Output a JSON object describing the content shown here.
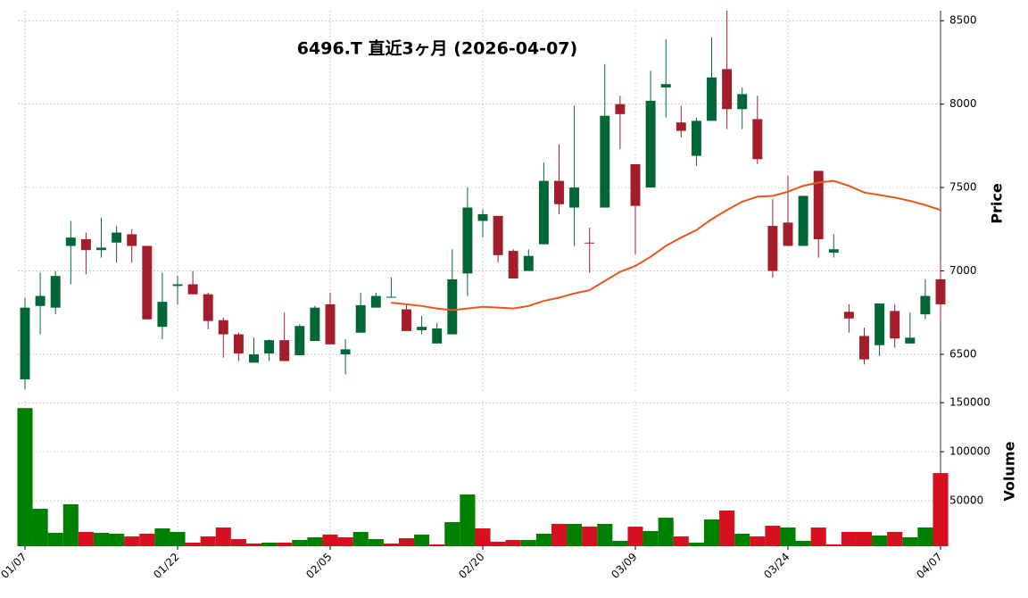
{
  "chart_data": {
    "type": "candlestick",
    "title": "6496.T  直近3ヶ月  (2026-04-07)",
    "ylabel": "Price",
    "y2label": "Volume",
    "x": [
      "01/07",
      null,
      null,
      null,
      null,
      null,
      null,
      null,
      null,
      null,
      "01/22",
      null,
      null,
      null,
      null,
      null,
      null,
      null,
      null,
      null,
      "02/05",
      null,
      null,
      null,
      null,
      null,
      null,
      null,
      null,
      null,
      "02/20",
      null,
      null,
      null,
      null,
      null,
      null,
      null,
      null,
      null,
      "03/09",
      null,
      null,
      null,
      null,
      null,
      null,
      null,
      null,
      null,
      "03/24",
      null,
      null,
      null,
      null,
      null,
      null,
      null,
      null,
      null,
      "04/07"
    ],
    "open": [
      6350,
      6790,
      6780,
      7150,
      7190,
      7125,
      7170,
      7220,
      7150,
      6665,
      6910,
      6920,
      6860,
      6705,
      6620,
      6450,
      6505,
      6585,
      6495,
      6580,
      6800,
      6500,
      6630,
      6780,
      6840,
      6770,
      6645,
      6565,
      6620,
      6985,
      7300,
      7330,
      7120,
      7000,
      7160,
      7540,
      7380,
      7170,
      7380,
      8000,
      7640,
      7500,
      8100,
      7890,
      7690,
      7900,
      8210,
      7970,
      7910,
      7270,
      7290,
      7150,
      7600,
      7110,
      6755,
      6610,
      6555,
      6760,
      6565,
      6740,
      6950
    ],
    "high": [
      6840,
      6990,
      7000,
      7300,
      7230,
      7320,
      7270,
      7250,
      7150,
      6990,
      6970,
      7000,
      6870,
      6720,
      6630,
      6600,
      6590,
      6750,
      6680,
      6790,
      6870,
      6590,
      6870,
      6870,
      6960,
      6800,
      6730,
      6690,
      7130,
      7500,
      7370,
      7330,
      7130,
      7130,
      7650,
      7760,
      7990,
      7260,
      8240,
      8050,
      7640,
      8200,
      8390,
      7990,
      7920,
      8400,
      8560,
      8100,
      8050,
      7430,
      7570,
      7450,
      7600,
      7220,
      6800,
      6660,
      6805,
      6800,
      6750,
      6950,
      7050
    ],
    "low": [
      6290,
      6620,
      6740,
      6920,
      6980,
      7080,
      7050,
      7050,
      6710,
      6590,
      6800,
      6860,
      6650,
      6480,
      6460,
      6450,
      6460,
      6460,
      6495,
      6580,
      6560,
      6380,
      6630,
      6780,
      6840,
      6640,
      6620,
      6565,
      6620,
      6850,
      7200,
      7050,
      6955,
      7000,
      7160,
      7340,
      7150,
      6990,
      7380,
      7730,
      7100,
      7500,
      7920,
      7800,
      7630,
      7900,
      7850,
      7850,
      7640,
      6960,
      7150,
      7150,
      7080,
      7080,
      6630,
      6440,
      6490,
      6540,
      6565,
      6710,
      6700
    ],
    "close": [
      6780,
      6850,
      6970,
      7200,
      7125,
      7140,
      7230,
      7150,
      6710,
      6815,
      6920,
      6860,
      6700,
      6620,
      6505,
      6500,
      6585,
      6460,
      6670,
      6780,
      6560,
      6530,
      6795,
      6850,
      6845,
      6640,
      6665,
      6655,
      6950,
      7380,
      7340,
      7095,
      6955,
      7090,
      7540,
      7400,
      7500,
      7165,
      7930,
      7940,
      7390,
      8020,
      8120,
      7840,
      7900,
      8160,
      7970,
      8060,
      7670,
      7000,
      7150,
      7450,
      7190,
      7130,
      6715,
      6470,
      6805,
      6595,
      6600,
      6850,
      6800
    ],
    "volume": [
      144500,
      41800,
      17300,
      46400,
      18200,
      17300,
      16400,
      13600,
      16400,
      21800,
      18200,
      7300,
      13600,
      22700,
      10900,
      6400,
      7300,
      7300,
      10000,
      12700,
      15500,
      12700,
      18200,
      10900,
      6400,
      11800,
      15500,
      5500,
      28200,
      56400,
      21800,
      8200,
      10000,
      10000,
      16400,
      26400,
      26400,
      23600,
      26400,
      9100,
      23600,
      19100,
      32700,
      13600,
      7300,
      30900,
      40000,
      16400,
      13600,
      24500,
      22700,
      9100,
      22700,
      5500,
      18200,
      18200,
      14500,
      18200,
      12700,
      22700,
      78200
    ],
    "ma": {
      "color": "#e8561c",
      "values": [
        null,
        null,
        null,
        null,
        null,
        null,
        null,
        null,
        null,
        null,
        null,
        null,
        null,
        null,
        null,
        null,
        null,
        null,
        null,
        null,
        null,
        null,
        null,
        null,
        6810,
        6800,
        6790,
        6775,
        6765,
        6775,
        6785,
        6780,
        6775,
        6790,
        6820,
        6840,
        6865,
        6885,
        6940,
        6995,
        7030,
        7085,
        7150,
        7200,
        7245,
        7310,
        7365,
        7415,
        7445,
        7450,
        7475,
        7510,
        7530,
        7540,
        7510,
        7470,
        7455,
        7440,
        7420,
        7395,
        7365
      ]
    },
    "up_color": "#006837",
    "down_color": "#a31e2a",
    "volume_up_color": "#008000",
    "volume_down_color": "#d7101f",
    "ylim": [
      6270,
      8560
    ],
    "yticks": [
      6500,
      7000,
      7500,
      8000,
      8500
    ],
    "y2lim": [
      3600,
      152000
    ],
    "y2ticks": [
      50000,
      100000,
      150000
    ],
    "grid": true
  }
}
